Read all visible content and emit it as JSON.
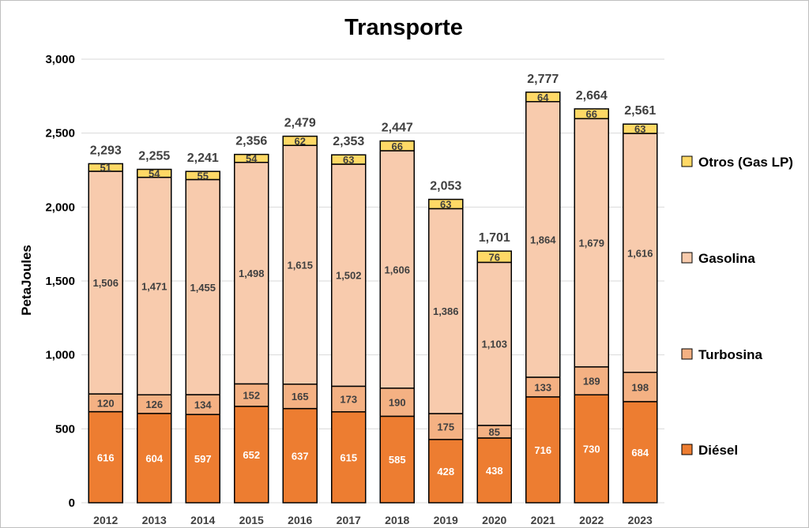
{
  "chart_data": {
    "type": "bar",
    "stacked": true,
    "title": "Transporte",
    "ylabel": "PetaJoules",
    "xlabel": "",
    "ylim": [
      0,
      3000
    ],
    "yticks": [
      "0",
      "500",
      "1,000",
      "1,500",
      "2,000",
      "2,500",
      "3,000"
    ],
    "grid": true,
    "legend_position": "right",
    "categories": [
      "2012",
      "2013",
      "2014",
      "2015",
      "2016",
      "2017",
      "2018",
      "2019",
      "2020",
      "2021",
      "2022",
      "2023"
    ],
    "series": [
      {
        "name": "Diésel",
        "color": "#ED7D31",
        "label_color": "#ffffff",
        "values": [
          616,
          604,
          597,
          652,
          637,
          615,
          585,
          428,
          438,
          716,
          730,
          684
        ]
      },
      {
        "name": "Turbosina",
        "color": "#F4B183",
        "label_color": "#404040",
        "values": [
          120,
          126,
          134,
          152,
          165,
          173,
          190,
          175,
          85,
          133,
          189,
          198
        ]
      },
      {
        "name": "Gasolina",
        "color": "#F8CBAD",
        "label_color": "#404040",
        "values": [
          1506,
          1471,
          1455,
          1498,
          1615,
          1502,
          1606,
          1386,
          1103,
          1864,
          1679,
          1616
        ]
      },
      {
        "name": "Otros (Gas LP)",
        "color": "#FFD966",
        "label_color": "#404040",
        "values": [
          51,
          54,
          55,
          54,
          62,
          63,
          66,
          63,
          76,
          64,
          66,
          63
        ]
      }
    ],
    "totals": [
      2293,
      2255,
      2241,
      2356,
      2479,
      2353,
      2447,
      2053,
      1701,
      2777,
      2664,
      2561
    ],
    "legend_order": [
      "Otros (Gas LP)",
      "Gasolina",
      "Turbosina",
      "Diésel"
    ]
  }
}
